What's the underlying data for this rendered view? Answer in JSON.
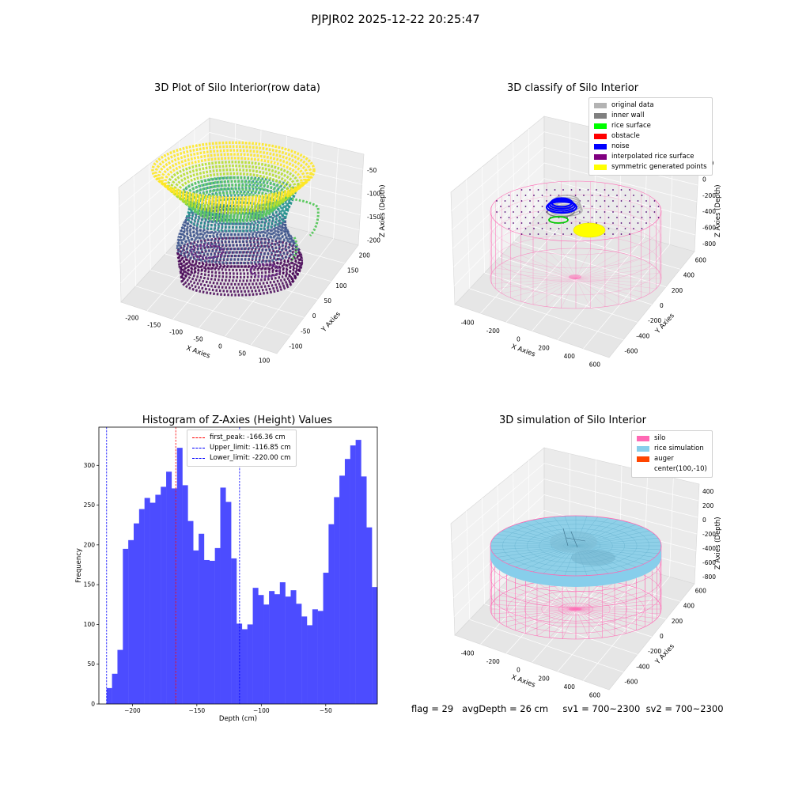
{
  "figure": {
    "suptitle": "PJPJR02 2025-12-22 20:25:47",
    "footer": {
      "flag": "flag = 29",
      "avg_depth": "avgDepth = 26 cm",
      "sv1": "sv1 = 700~2300",
      "sv2": "sv2 = 700~2300"
    }
  },
  "chart_data": [
    {
      "type": "scatter",
      "title": "3D Plot of Silo Interior(row data)",
      "xlabel": "X Axies",
      "ylabel": "Y Axies",
      "zlabel": "Z Axies (Depth)",
      "x_ticks": [
        -200,
        -150,
        -100,
        -50,
        0,
        50,
        100
      ],
      "y_ticks": [
        -100,
        -50,
        0,
        50,
        100,
        150,
        200
      ],
      "z_ticks": [
        -200,
        -150,
        -100,
        -50
      ],
      "colormap": "viridis"
    },
    {
      "type": "scatter",
      "title": "3D classify of Silo Interior",
      "xlabel": "X Axies",
      "ylabel": "Y Axies",
      "zlabel": "Z Axies (Depth)",
      "x_ticks": [
        -400,
        -200,
        0,
        200,
        400,
        600
      ],
      "y_ticks": [
        -600,
        -400,
        -200,
        0,
        200,
        400,
        600
      ],
      "z_ticks": [
        -800,
        -600,
        -400,
        -200,
        0,
        200
      ],
      "legend_position": "top-right",
      "legend": [
        {
          "label": "original data",
          "color": "#b3b3b3"
        },
        {
          "label": "inner wall",
          "color": "#808080"
        },
        {
          "label": "rice surface",
          "color": "#00ff00"
        },
        {
          "label": "obstacle",
          "color": "#ff0000"
        },
        {
          "label": "noise",
          "color": "#0000ff"
        },
        {
          "label": "interpolated rice surface",
          "color": "#800080"
        },
        {
          "label": "symmetric generated points",
          "color": "#ffff00"
        }
      ]
    },
    {
      "type": "bar",
      "title": "Histogram of Z-Axies (Height) Values",
      "xlabel": "Depth (cm)",
      "ylabel": "Frequency",
      "xlim": [
        -226,
        -10
      ],
      "ylim": [
        0,
        348
      ],
      "x_ticks": [
        -200,
        -150,
        -100,
        -50
      ],
      "y_ticks": [
        0,
        50,
        100,
        150,
        200,
        250,
        300
      ],
      "bar_color": "#4c4cff",
      "bin_start": -220,
      "bin_width": 4.2,
      "values": [
        20,
        38,
        68,
        195,
        206,
        227,
        245,
        259,
        253,
        263,
        273,
        292,
        271,
        322,
        275,
        230,
        193,
        214,
        181,
        180,
        196,
        272,
        254,
        183,
        101,
        94,
        100,
        146,
        137,
        125,
        142,
        138,
        153,
        135,
        143,
        126,
        110,
        99,
        119,
        117,
        165,
        226,
        260,
        287,
        308,
        325,
        332,
        286,
        222,
        147
      ],
      "reference_lines": [
        {
          "label": "first_peak: -166.36 cm",
          "x": -166.36,
          "color": "#ff0000"
        },
        {
          "label": "Upper_limit: -116.85 cm",
          "x": -116.85,
          "color": "#0000ff"
        },
        {
          "label": "Lower_limit: -220.00 cm",
          "x": -220.0,
          "color": "#0000ff"
        }
      ],
      "legend_position": "top-center"
    },
    {
      "type": "area",
      "title": "3D simulation of Silo Interior",
      "xlabel": "X Axies",
      "ylabel": "Y Axies",
      "zlabel": "Z Axies (Depth)",
      "x_ticks": [
        -400,
        -200,
        0,
        200,
        400,
        600
      ],
      "y_ticks": [
        -600,
        -400,
        -200,
        0,
        200,
        400,
        600
      ],
      "z_ticks": [
        -800,
        -600,
        -400,
        -200,
        0,
        200,
        400
      ],
      "legend_position": "top-right",
      "legend": [
        {
          "label": "silo",
          "color": "#ff69b4"
        },
        {
          "label": "rice simulation",
          "color": "#87ceeb"
        },
        {
          "label": "auger",
          "color": "#ff4500"
        },
        {
          "label": "center(100,-10)",
          "color": ""
        }
      ]
    }
  ]
}
